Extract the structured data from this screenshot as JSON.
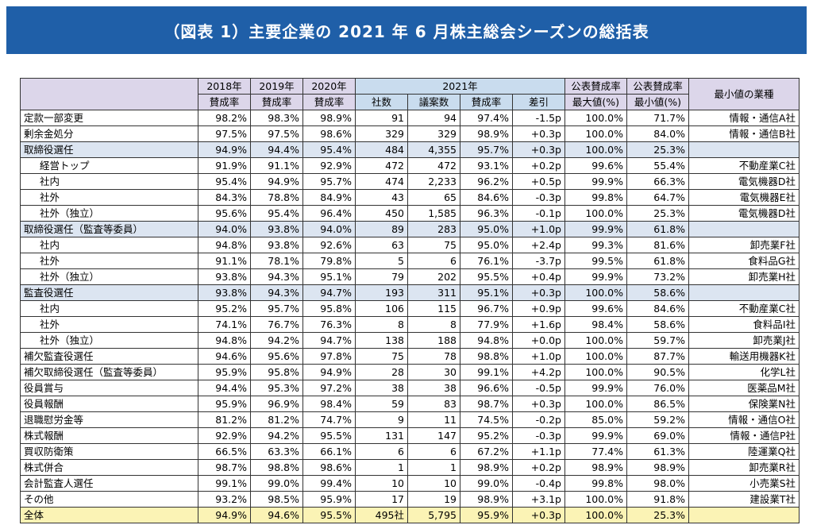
{
  "title": "（図表 1）主要企業の 2021 年 6 月株主総会シーズンの総括表",
  "header": {
    "y2018": "2018年",
    "y2019": "2019年",
    "y2020": "2020年",
    "y2021": "2021年",
    "rate": "賛成率",
    "companies": "社数",
    "proposals": "議案数",
    "diff": "差引",
    "max_top": "公表賛成率",
    "max_bottom": "最大値(%)",
    "min_top": "公表賛成率",
    "min_bottom": "最小値(%)",
    "min_industry": "最小値の業種"
  },
  "rows": [
    {
      "label": "定款一部変更",
      "r2018": "98.2%",
      "r2019": "98.3%",
      "r2020": "98.9%",
      "companies": "91",
      "proposals": "94",
      "r2021": "97.4%",
      "diff": "-1.5p",
      "max": "100.0%",
      "min": "71.7%",
      "industry": "情報・通信A社"
    },
    {
      "label": "剰余金処分",
      "r2018": "97.5%",
      "r2019": "97.5%",
      "r2020": "98.6%",
      "companies": "329",
      "proposals": "329",
      "r2021": "98.9%",
      "diff": "+0.3p",
      "max": "100.0%",
      "min": "84.0%",
      "industry": "情報・通信B社"
    },
    {
      "label": "取締役選任",
      "r2018": "94.9%",
      "r2019": "94.4%",
      "r2020": "95.4%",
      "companies": "484",
      "proposals": "4,355",
      "r2021": "95.7%",
      "diff": "+0.3p",
      "max": "100.0%",
      "min": "25.3%",
      "industry": ""
    },
    {
      "label": "経営トップ",
      "r2018": "91.9%",
      "r2019": "91.1%",
      "r2020": "92.9%",
      "companies": "472",
      "proposals": "472",
      "r2021": "93.1%",
      "diff": "+0.2p",
      "max": "99.6%",
      "min": "55.4%",
      "industry": "不動産業C社"
    },
    {
      "label": "社内",
      "r2018": "95.4%",
      "r2019": "94.9%",
      "r2020": "95.7%",
      "companies": "474",
      "proposals": "2,233",
      "r2021": "96.2%",
      "diff": "+0.5p",
      "max": "99.9%",
      "min": "66.3%",
      "industry": "電気機器D社"
    },
    {
      "label": "社外",
      "r2018": "84.3%",
      "r2019": "78.8%",
      "r2020": "84.9%",
      "companies": "43",
      "proposals": "65",
      "r2021": "84.6%",
      "diff": "-0.3p",
      "max": "99.8%",
      "min": "64.7%",
      "industry": "電気機器E社"
    },
    {
      "label": "社外（独立）",
      "r2018": "95.6%",
      "r2019": "95.4%",
      "r2020": "96.4%",
      "companies": "450",
      "proposals": "1,585",
      "r2021": "96.3%",
      "diff": "-0.1p",
      "max": "100.0%",
      "min": "25.3%",
      "industry": "電気機器D社"
    },
    {
      "label": "取締役選任（監査等委員）",
      "r2018": "94.0%",
      "r2019": "93.8%",
      "r2020": "94.0%",
      "companies": "89",
      "proposals": "283",
      "r2021": "95.0%",
      "diff": "+1.0p",
      "max": "99.9%",
      "min": "61.8%",
      "industry": ""
    },
    {
      "label": "社内",
      "r2018": "94.8%",
      "r2019": "93.8%",
      "r2020": "92.6%",
      "companies": "63",
      "proposals": "75",
      "r2021": "95.0%",
      "diff": "+2.4p",
      "max": "99.3%",
      "min": "81.6%",
      "industry": "卸売業F社"
    },
    {
      "label": "社外",
      "r2018": "91.1%",
      "r2019": "78.1%",
      "r2020": "79.8%",
      "companies": "5",
      "proposals": "6",
      "r2021": "76.1%",
      "diff": "-3.7p",
      "max": "99.5%",
      "min": "61.8%",
      "industry": "食料品G社"
    },
    {
      "label": "社外（独立）",
      "r2018": "93.8%",
      "r2019": "94.3%",
      "r2020": "95.1%",
      "companies": "79",
      "proposals": "202",
      "r2021": "95.5%",
      "diff": "+0.4p",
      "max": "99.9%",
      "min": "73.2%",
      "industry": "卸売業H社"
    },
    {
      "label": "監査役選任",
      "r2018": "93.8%",
      "r2019": "94.3%",
      "r2020": "94.7%",
      "companies": "193",
      "proposals": "311",
      "r2021": "95.1%",
      "diff": "+0.3p",
      "max": "100.0%",
      "min": "58.6%",
      "industry": ""
    },
    {
      "label": "社内",
      "r2018": "95.2%",
      "r2019": "95.7%",
      "r2020": "95.8%",
      "companies": "106",
      "proposals": "115",
      "r2021": "96.7%",
      "diff": "+0.9p",
      "max": "99.6%",
      "min": "84.6%",
      "industry": "不動産業C社"
    },
    {
      "label": "社外",
      "r2018": "74.1%",
      "r2019": "76.7%",
      "r2020": "76.3%",
      "companies": "8",
      "proposals": "8",
      "r2021": "77.9%",
      "diff": "+1.6p",
      "max": "98.4%",
      "min": "58.6%",
      "industry": "食料品I社"
    },
    {
      "label": "社外（独立）",
      "r2018": "94.8%",
      "r2019": "94.2%",
      "r2020": "94.7%",
      "companies": "138",
      "proposals": "188",
      "r2021": "94.8%",
      "diff": "+0.0p",
      "max": "100.0%",
      "min": "59.7%",
      "industry": "卸売業J社"
    },
    {
      "label": "補欠監査役選任",
      "r2018": "94.6%",
      "r2019": "95.6%",
      "r2020": "97.8%",
      "companies": "75",
      "proposals": "78",
      "r2021": "98.8%",
      "diff": "+1.0p",
      "max": "100.0%",
      "min": "87.7%",
      "industry": "輸送用機器K社"
    },
    {
      "label": "補欠取締役選任（監査等委員）",
      "r2018": "95.9%",
      "r2019": "95.8%",
      "r2020": "94.9%",
      "companies": "28",
      "proposals": "30",
      "r2021": "99.1%",
      "diff": "+4.2p",
      "max": "100.0%",
      "min": "90.5%",
      "industry": "化学L社"
    },
    {
      "label": "役員賞与",
      "r2018": "94.4%",
      "r2019": "95.3%",
      "r2020": "97.2%",
      "companies": "38",
      "proposals": "38",
      "r2021": "96.6%",
      "diff": "-0.5p",
      "max": "99.9%",
      "min": "76.0%",
      "industry": "医薬品M社"
    },
    {
      "label": "役員報酬",
      "r2018": "95.9%",
      "r2019": "96.9%",
      "r2020": "98.4%",
      "companies": "59",
      "proposals": "83",
      "r2021": "98.7%",
      "diff": "+0.3p",
      "max": "100.0%",
      "min": "86.5%",
      "industry": "保険業N社"
    },
    {
      "label": "退職慰労金等",
      "r2018": "81.2%",
      "r2019": "81.2%",
      "r2020": "74.7%",
      "companies": "9",
      "proposals": "11",
      "r2021": "74.5%",
      "diff": "-0.2p",
      "max": "85.0%",
      "min": "59.2%",
      "industry": "情報・通信O社"
    },
    {
      "label": "株式報酬",
      "r2018": "92.9%",
      "r2019": "94.2%",
      "r2020": "95.5%",
      "companies": "131",
      "proposals": "147",
      "r2021": "95.2%",
      "diff": "-0.3p",
      "max": "99.9%",
      "min": "69.0%",
      "industry": "情報・通信P社"
    },
    {
      "label": "買収防衛策",
      "r2018": "66.5%",
      "r2019": "63.3%",
      "r2020": "66.1%",
      "companies": "6",
      "proposals": "6",
      "r2021": "67.2%",
      "diff": "+1.1p",
      "max": "77.4%",
      "min": "61.3%",
      "industry": "陸運業Q社"
    },
    {
      "label": "株式併合",
      "r2018": "98.7%",
      "r2019": "98.8%",
      "r2020": "98.6%",
      "companies": "1",
      "proposals": "1",
      "r2021": "98.9%",
      "diff": "+0.2p",
      "max": "98.9%",
      "min": "98.9%",
      "industry": "卸売業R社"
    },
    {
      "label": "会計監査人選任",
      "r2018": "99.1%",
      "r2019": "99.0%",
      "r2020": "99.4%",
      "companies": "10",
      "proposals": "10",
      "r2021": "99.0%",
      "diff": "-0.4p",
      "max": "99.8%",
      "min": "98.0%",
      "industry": "小売業S社"
    },
    {
      "label": "その他",
      "r2018": "93.2%",
      "r2019": "98.5%",
      "r2020": "95.9%",
      "companies": "17",
      "proposals": "19",
      "r2021": "98.9%",
      "diff": "+3.1p",
      "max": "100.0%",
      "min": "91.8%",
      "industry": "建設業T社"
    },
    {
      "label": "全体",
      "r2018": "94.9%",
      "r2019": "94.6%",
      "r2020": "95.5%",
      "companies": "495社",
      "proposals": "5,795",
      "r2021": "95.9%",
      "diff": "+0.3p",
      "max": "100.0%",
      "min": "25.3%",
      "industry": ""
    }
  ]
}
